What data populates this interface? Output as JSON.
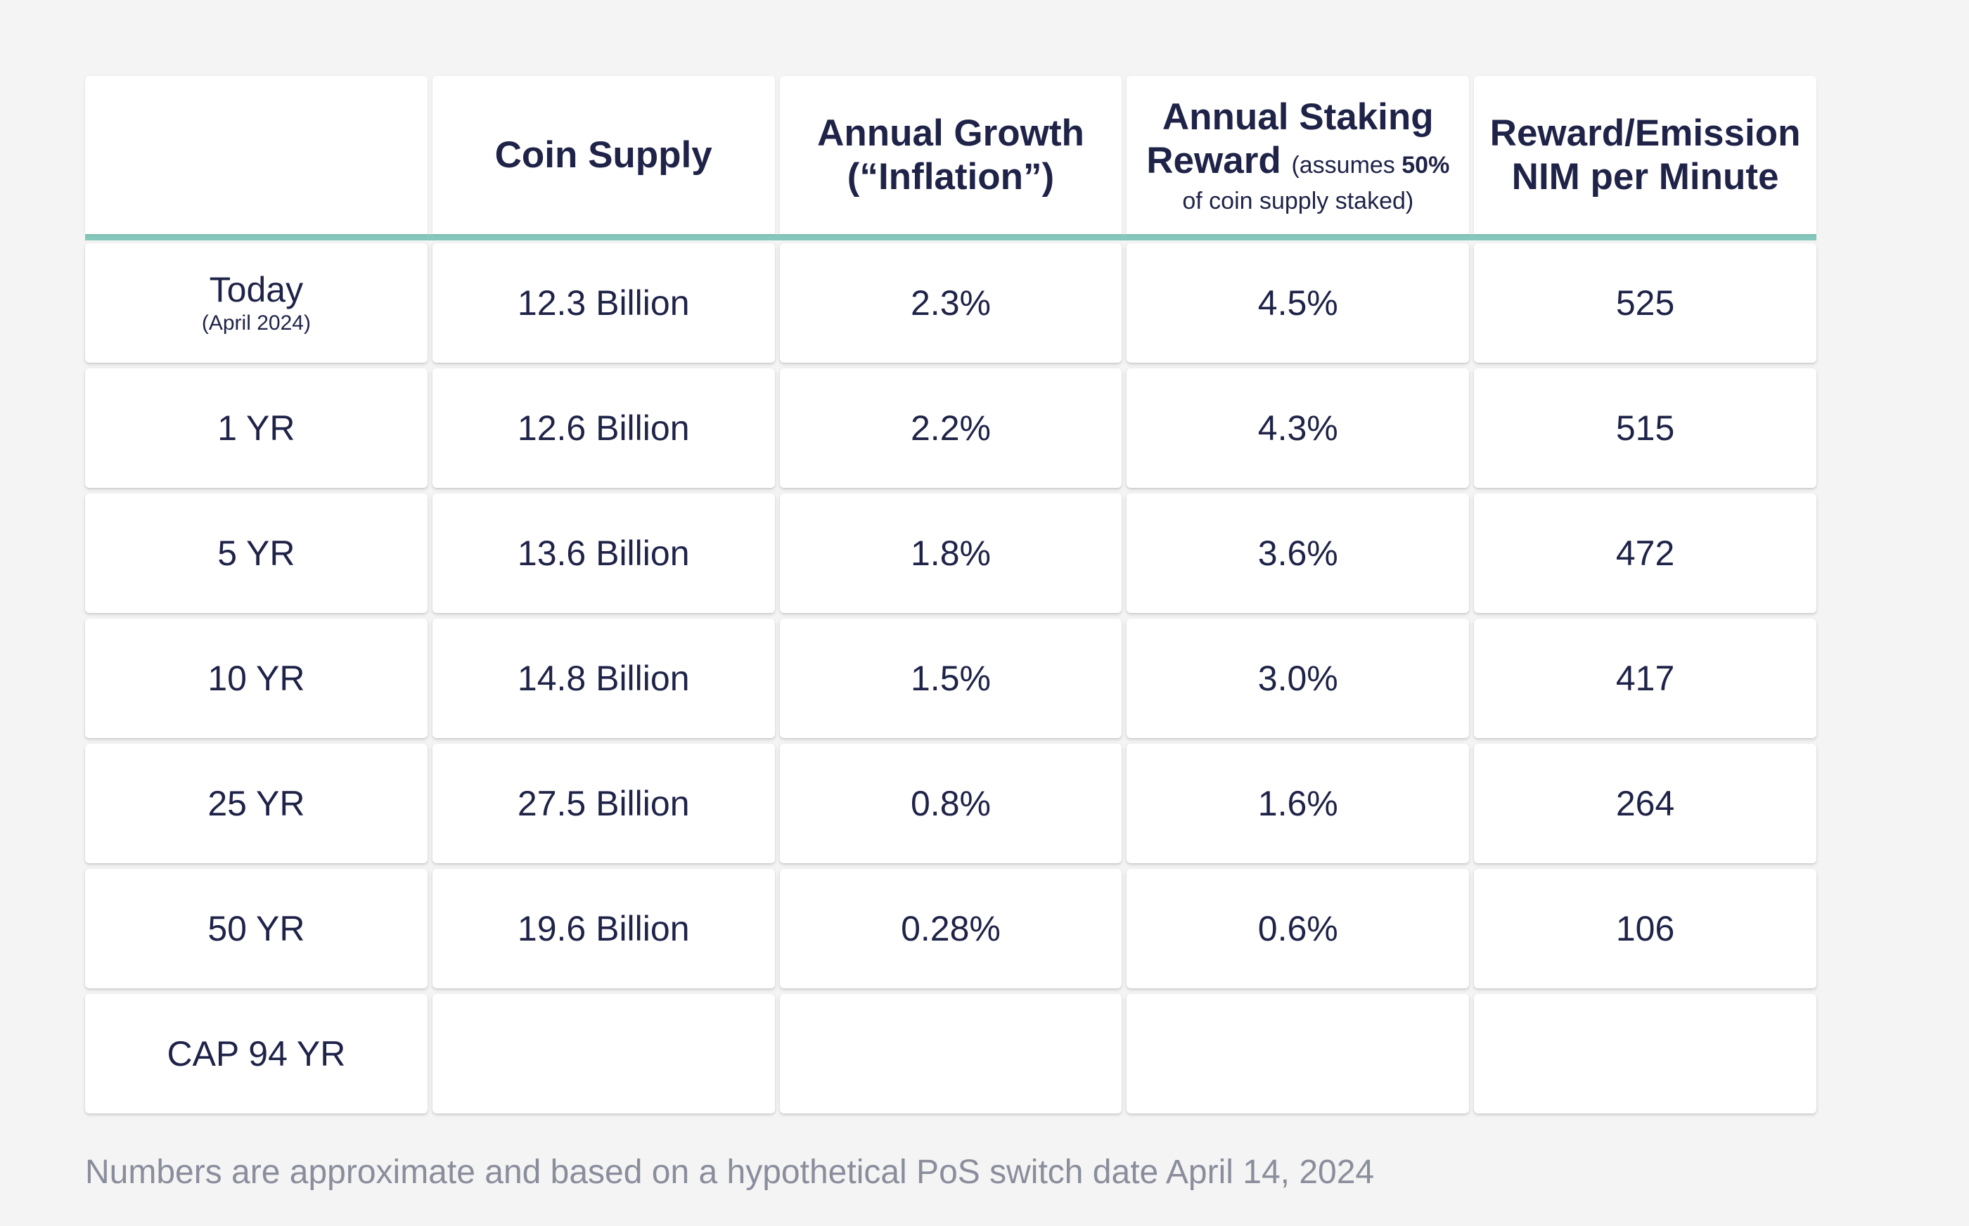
{
  "chart_data": {
    "type": "table",
    "header": {
      "col0": "",
      "coin_supply": "Coin Supply",
      "annual_growth_line1": "Annual Growth",
      "annual_growth_line2": "(“Inflation”)",
      "staking_line1": "Annual Staking",
      "staking_line2_main": "Reward",
      "staking_note_pre": "(assumes ",
      "staking_note_bold": "50%",
      "staking_note_line2": "of coin supply staked)",
      "reward_line1": "Reward/Emission",
      "reward_line2": "NIM per Minute"
    },
    "rows": [
      {
        "label": "Today",
        "sublabel": "(April 2024)",
        "coin_supply": "12.3 Billion",
        "annual_growth": "2.3%",
        "staking_reward": "4.5%",
        "nim_per_minute": "525"
      },
      {
        "label": "1 YR",
        "sublabel": "",
        "coin_supply": "12.6 Billion",
        "annual_growth": "2.2%",
        "staking_reward": "4.3%",
        "nim_per_minute": "515"
      },
      {
        "label": "5 YR",
        "sublabel": "",
        "coin_supply": "13.6 Billion",
        "annual_growth": "1.8%",
        "staking_reward": "3.6%",
        "nim_per_minute": "472"
      },
      {
        "label": "10 YR",
        "sublabel": "",
        "coin_supply": "14.8 Billion",
        "annual_growth": "1.5%",
        "staking_reward": "3.0%",
        "nim_per_minute": "417"
      },
      {
        "label": "25 YR",
        "sublabel": "",
        "coin_supply": "27.5 Billion",
        "annual_growth": "0.8%",
        "staking_reward": "1.6%",
        "nim_per_minute": "264"
      },
      {
        "label": "50 YR",
        "sublabel": "",
        "coin_supply": "19.6 Billion",
        "annual_growth": "0.28%",
        "staking_reward": "0.6%",
        "nim_per_minute": "106"
      },
      {
        "label": "CAP 94 YR",
        "sublabel": "",
        "coin_supply": "",
        "annual_growth": "",
        "staking_reward": "",
        "nim_per_minute": ""
      }
    ],
    "footnote": "Numbers are approximate and based on a hypothetical PoS switch date April 14, 2024"
  },
  "colors": {
    "accent": "#86c7bc",
    "text": "#1f2348",
    "footnote": "#8a8d9c",
    "background": "#f4f4f4",
    "cell": "#ffffff"
  }
}
